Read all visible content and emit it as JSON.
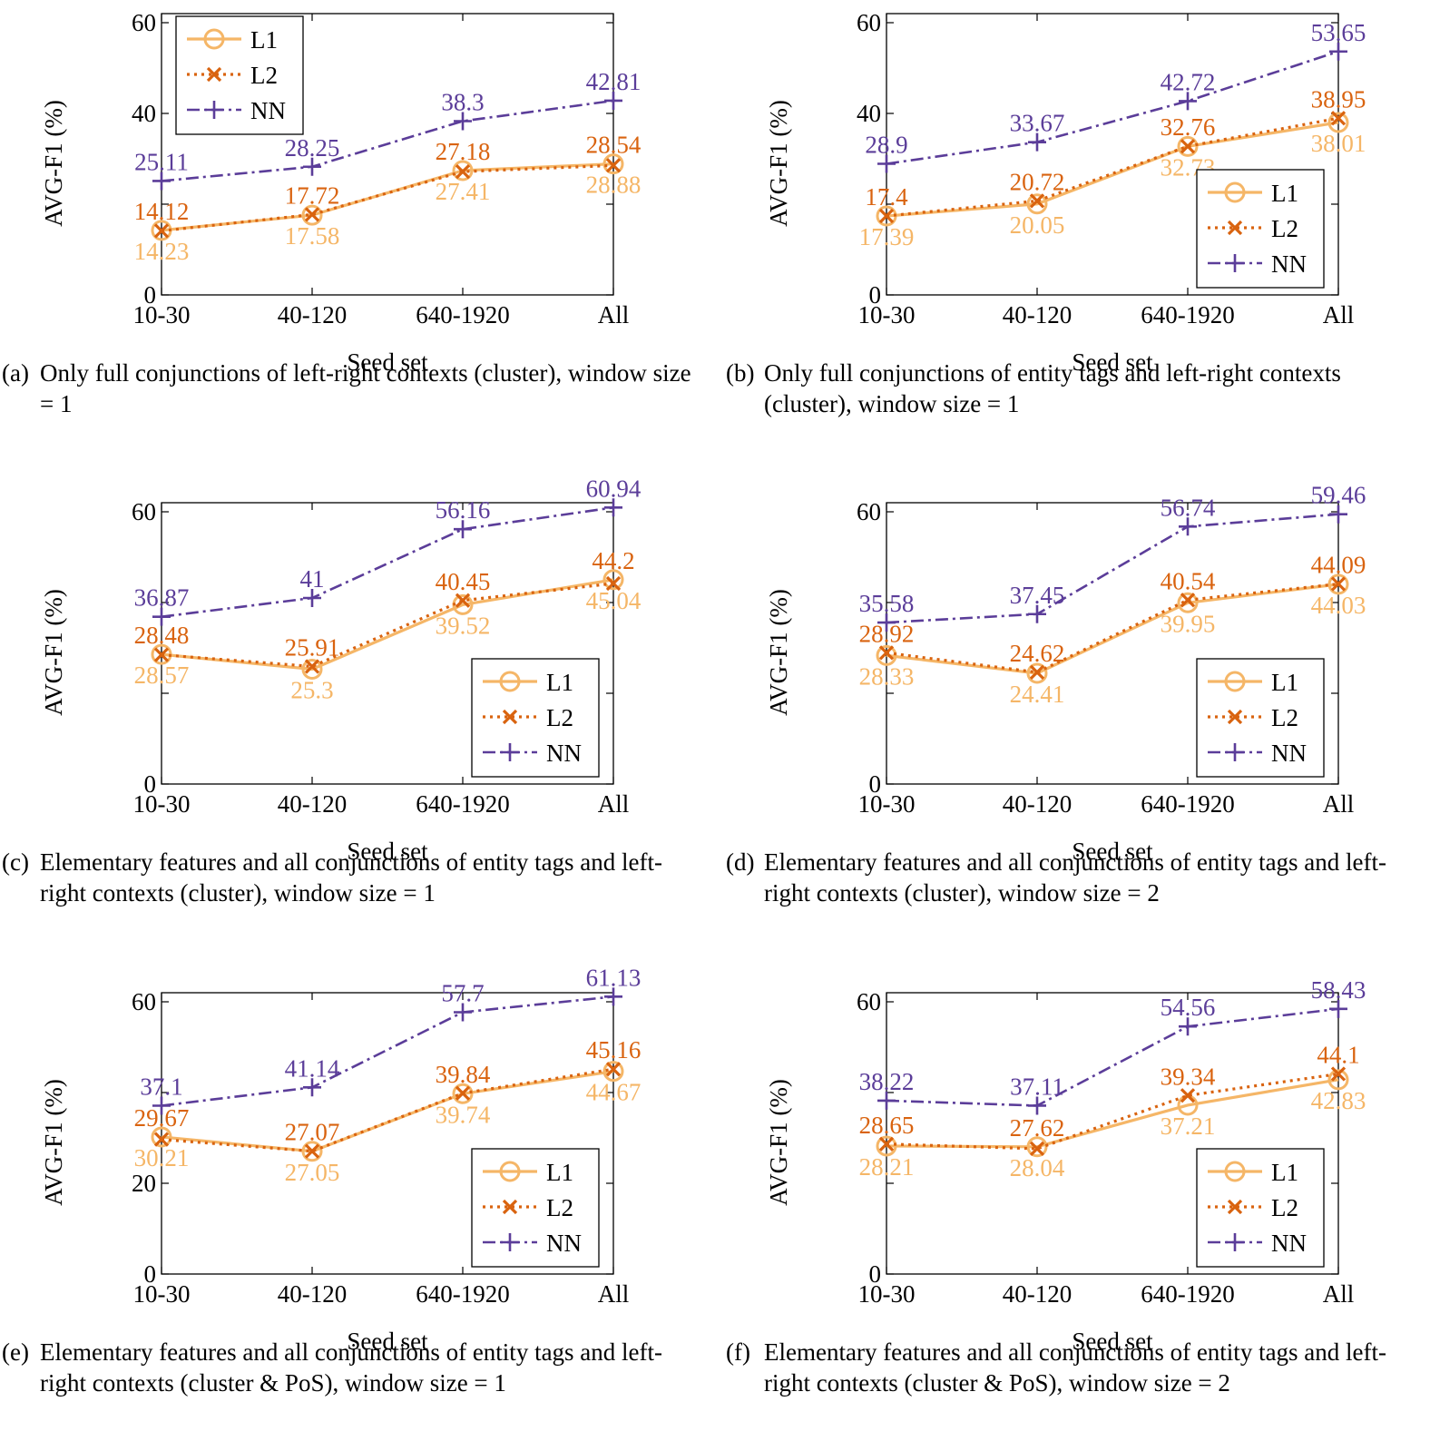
{
  "colors": {
    "L1": "#f5b667",
    "L2": "#d9630f",
    "NN": "#5b3d99",
    "axis": "#000000"
  },
  "shared": {
    "xlabel": "Seed set",
    "ylabel": "AVG-F1 (%)",
    "categories": [
      "10-30",
      "40-120",
      "640-1920",
      "All"
    ],
    "legend": [
      "L1",
      "L2",
      "NN"
    ]
  },
  "chart_data": [
    {
      "id": "a",
      "type": "line",
      "panel_tag": "(a)",
      "caption": "Only full conjunctions of left-right contexts (cluster), window size = 1",
      "ylim": [
        0,
        60
      ],
      "yticks": [
        0,
        20,
        40,
        60
      ],
      "ytick_labels": [
        "0",
        "40",
        "60"
      ],
      "legend_position": "top-left",
      "categories": [
        "10-30",
        "40-120",
        "640-1920",
        "All"
      ],
      "series": [
        {
          "name": "L1",
          "values": [
            14.23,
            17.58,
            27.41,
            28.88
          ],
          "labels": [
            "14.23",
            "17.58",
            "27.41",
            "28.88"
          ]
        },
        {
          "name": "L2",
          "values": [
            14.12,
            17.72,
            27.18,
            28.54
          ],
          "labels": [
            "14.12",
            "17.72",
            "27.18",
            "28.54"
          ]
        },
        {
          "name": "NN",
          "values": [
            25.11,
            28.25,
            38.3,
            42.81
          ],
          "labels": [
            "25.11",
            "28.25",
            "38.3",
            "42.81"
          ]
        }
      ]
    },
    {
      "id": "b",
      "type": "line",
      "panel_tag": "(b)",
      "caption": "Only full conjunctions of entity tags and left-right contexts (cluster), window size = 1",
      "ylim": [
        0,
        60
      ],
      "yticks": [
        0,
        20,
        40,
        60
      ],
      "ytick_labels": [
        "0",
        "40",
        "60"
      ],
      "legend_position": "bottom-right",
      "categories": [
        "10-30",
        "40-120",
        "640-1920",
        "All"
      ],
      "series": [
        {
          "name": "L1",
          "values": [
            17.39,
            20.05,
            32.73,
            38.01
          ],
          "labels": [
            "17.39",
            "20.05",
            "32.73",
            "38.01"
          ]
        },
        {
          "name": "L2",
          "values": [
            17.4,
            20.72,
            32.76,
            38.95
          ],
          "labels": [
            "17.4",
            "20.72",
            "32.76",
            "38.95"
          ]
        },
        {
          "name": "NN",
          "values": [
            28.9,
            33.67,
            42.72,
            53.65
          ],
          "labels": [
            "28.9",
            "33.67",
            "42.72",
            "53.65"
          ]
        }
      ]
    },
    {
      "id": "c",
      "type": "line",
      "panel_tag": "(c)",
      "caption": "Elementary features and all conjunctions of entity tags and left-right contexts (cluster), window size = 1",
      "ylim": [
        0,
        60
      ],
      "yticks": [
        0,
        20,
        40,
        60
      ],
      "ytick_labels": [
        "0",
        "60"
      ],
      "legend_position": "bottom-right",
      "categories": [
        "10-30",
        "40-120",
        "640-1920",
        "All"
      ],
      "series": [
        {
          "name": "L1",
          "values": [
            28.57,
            25.3,
            39.52,
            45.04
          ],
          "labels": [
            "28.57",
            "25.3",
            "39.52",
            "45.04"
          ]
        },
        {
          "name": "L2",
          "values": [
            28.48,
            25.91,
            40.45,
            44.2
          ],
          "labels": [
            "28.48",
            "25.91",
            "40.45",
            "44.2"
          ]
        },
        {
          "name": "NN",
          "values": [
            36.87,
            41,
            56.16,
            60.94
          ],
          "labels": [
            "36.87",
            "41",
            "56.16",
            "60.94"
          ]
        }
      ]
    },
    {
      "id": "d",
      "type": "line",
      "panel_tag": "(d)",
      "caption": "Elementary features and all conjunctions of entity tags and left-right contexts (cluster), window size = 2",
      "ylim": [
        0,
        60
      ],
      "yticks": [
        0,
        20,
        40,
        60
      ],
      "ytick_labels": [
        "0",
        "60"
      ],
      "legend_position": "bottom-right",
      "categories": [
        "10-30",
        "40-120",
        "640-1920",
        "All"
      ],
      "series": [
        {
          "name": "L1",
          "values": [
            28.33,
            24.41,
            39.95,
            44.03
          ],
          "labels": [
            "28.33",
            "24.41",
            "39.95",
            "44.03"
          ]
        },
        {
          "name": "L2",
          "values": [
            28.92,
            24.62,
            40.54,
            44.09
          ],
          "labels": [
            "28.92",
            "24.62",
            "40.54",
            "44.09"
          ]
        },
        {
          "name": "NN",
          "values": [
            35.58,
            37.45,
            56.74,
            59.46
          ],
          "labels": [
            "35.58",
            "37.45",
            "56.74",
            "59.46"
          ]
        }
      ]
    },
    {
      "id": "e",
      "type": "line",
      "panel_tag": "(e)",
      "caption": "Elementary features and all conjunctions of entity tags and left-right contexts (cluster & PoS), window size = 1",
      "ylim": [
        0,
        60
      ],
      "yticks": [
        0,
        20,
        40,
        60
      ],
      "ytick_labels": [
        "0",
        "20",
        "60"
      ],
      "legend_position": "bottom-right",
      "categories": [
        "10-30",
        "40-120",
        "640-1920",
        "All"
      ],
      "series": [
        {
          "name": "L1",
          "values": [
            30.21,
            27.05,
            39.74,
            44.67
          ],
          "labels": [
            "30.21",
            "27.05",
            "39.74",
            "44.67"
          ]
        },
        {
          "name": "L2",
          "values": [
            29.67,
            27.07,
            39.84,
            45.16
          ],
          "labels": [
            "29.67",
            "27.07",
            "39.84",
            "45.16"
          ]
        },
        {
          "name": "NN",
          "values": [
            37.1,
            41.14,
            57.7,
            61.13
          ],
          "labels": [
            "37.1",
            "41.14",
            "57.7",
            "61.13"
          ]
        }
      ]
    },
    {
      "id": "f",
      "type": "line",
      "panel_tag": "(f)",
      "caption": "Elementary features and all conjunctions of entity tags and left-right contexts (cluster & PoS), window size = 2",
      "ylim": [
        0,
        60
      ],
      "yticks": [
        0,
        20,
        40,
        60
      ],
      "ytick_labels": [
        "0",
        "60"
      ],
      "legend_position": "bottom-right",
      "categories": [
        "10-30",
        "40-120",
        "640-1920",
        "All"
      ],
      "series": [
        {
          "name": "L1",
          "values": [
            28.21,
            28.04,
            37.21,
            42.83
          ],
          "labels": [
            "28.21",
            "28.04",
            "37.21",
            "42.83"
          ]
        },
        {
          "name": "L2",
          "values": [
            28.65,
            27.62,
            39.34,
            44.1
          ],
          "labels": [
            "28.65",
            "27.62",
            "39.34",
            "44.1"
          ]
        },
        {
          "name": "NN",
          "values": [
            38.22,
            37.11,
            54.56,
            58.43
          ],
          "labels": [
            "38.22",
            "37.11",
            "54.56",
            "58.43"
          ]
        }
      ]
    }
  ]
}
